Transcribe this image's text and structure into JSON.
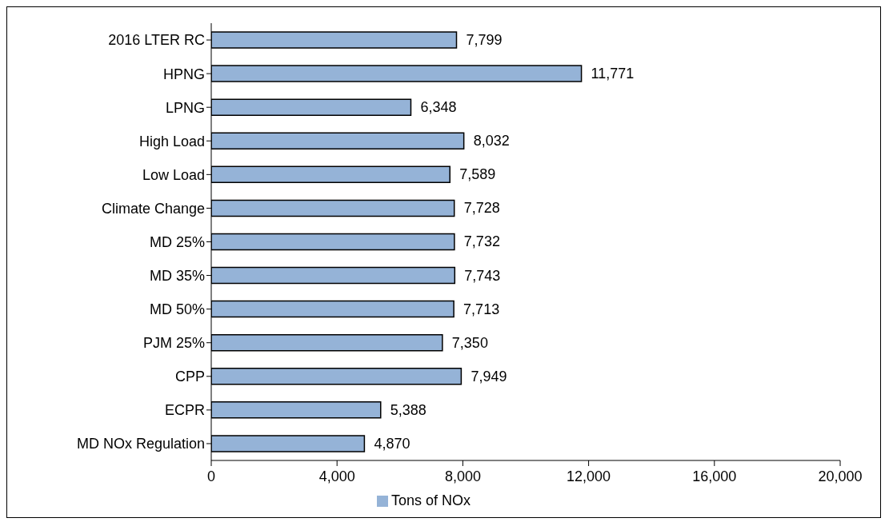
{
  "chart_data": {
    "type": "bar",
    "orientation": "horizontal",
    "categories": [
      "2016 LTER RC",
      "HPNG",
      "LPNG",
      "High Load",
      "Low Load",
      "Climate Change",
      "MD 25%",
      "MD 35%",
      "MD 50%",
      "PJM 25%",
      "CPP",
      "ECPR",
      "MD NOx Regulation"
    ],
    "series": [
      {
        "name": "Tons of NOx",
        "color": "#95b3d7",
        "values": [
          7799,
          11771,
          6348,
          8032,
          7589,
          7728,
          7732,
          7743,
          7713,
          7350,
          7949,
          5388,
          4870
        ],
        "value_labels": [
          "7,799",
          "11,771",
          "6,348",
          "8,032",
          "7,589",
          "7,728",
          "7,732",
          "7,743",
          "7,713",
          "7,350",
          "7,949",
          "5,388",
          "4,870"
        ]
      }
    ],
    "xlim": [
      0,
      20000
    ],
    "xticks": [
      0,
      {
        "value": 4000,
        "label": "4,000"
      },
      {
        "value": 8000,
        "label": "8,000"
      },
      {
        "value": 12000,
        "label": "12,000"
      },
      {
        "value": 16000,
        "label": "16,000"
      },
      {
        "value": 20000,
        "label": "20,000"
      }
    ],
    "grid": false,
    "legend": "bottom"
  }
}
